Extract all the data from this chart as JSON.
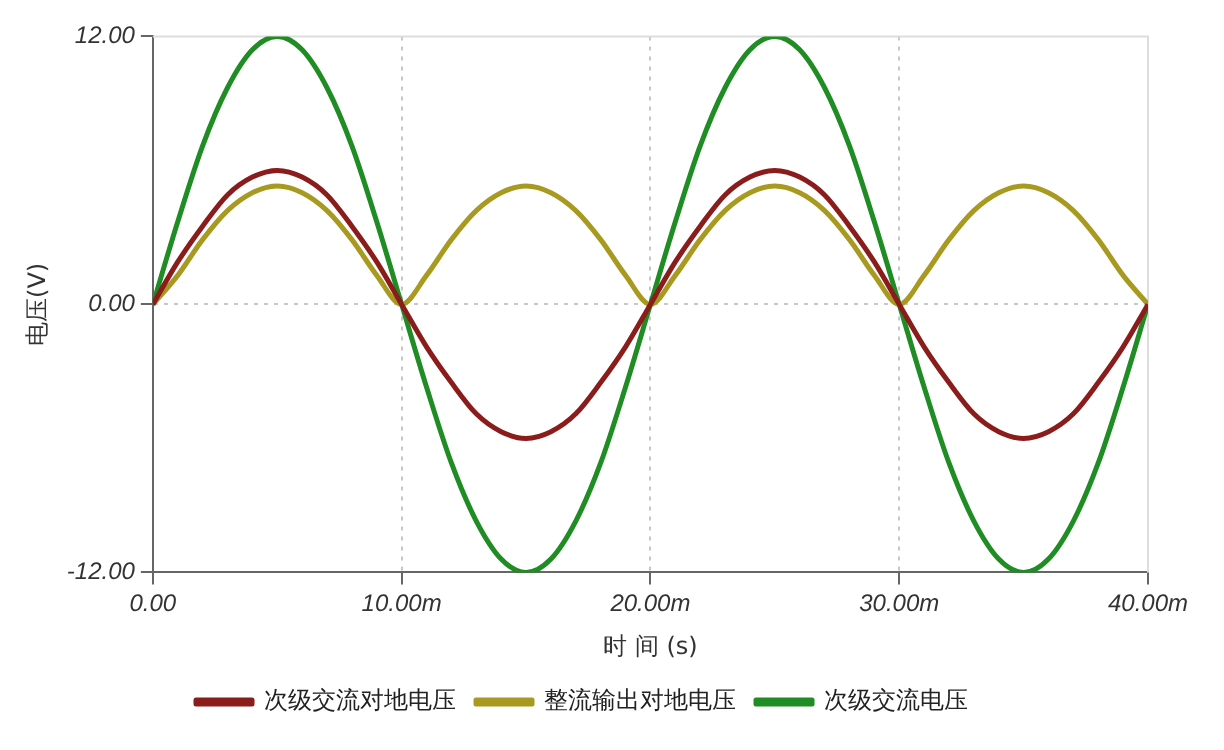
{
  "chart_data": {
    "type": "line",
    "xlabel": "时 间 (s)",
    "ylabel": "电压(V)",
    "x": [
      0,
      1,
      2,
      3,
      4,
      5,
      6,
      7,
      8,
      9,
      10,
      11,
      12,
      13,
      14,
      15,
      16,
      17,
      18,
      19,
      20,
      21,
      22,
      23,
      24,
      25,
      26,
      27,
      28,
      29,
      30,
      31,
      32,
      33,
      34,
      35,
      36,
      37,
      38,
      39,
      40
    ],
    "series": [
      {
        "name": "次级交流对地电压",
        "color": "#8b1c1c",
        "values": [
          0,
          1.9,
          3.5,
          4.9,
          5.7,
          6,
          5.7,
          4.9,
          3.5,
          1.9,
          0,
          -1.9,
          -3.5,
          -4.9,
          -5.7,
          -6,
          -5.7,
          -4.9,
          -3.5,
          -1.9,
          0,
          1.9,
          3.5,
          4.9,
          5.7,
          6,
          5.7,
          4.9,
          3.5,
          1.9,
          0,
          -1.9,
          -3.5,
          -4.9,
          -5.7,
          -6,
          -5.7,
          -4.9,
          -3.5,
          -1.9,
          0
        ]
      },
      {
        "name": "整流输出对地电压",
        "color": "#a89a20",
        "values": [
          0,
          1.3,
          2.9,
          4.2,
          5,
          5.3,
          5,
          4.2,
          2.9,
          1.3,
          0,
          1.3,
          2.9,
          4.2,
          5,
          5.3,
          5,
          4.2,
          2.9,
          1.3,
          0,
          1.3,
          2.9,
          4.2,
          5,
          5.3,
          5,
          4.2,
          2.9,
          1.3,
          0,
          1.3,
          2.9,
          4.2,
          5,
          5.3,
          5,
          4.2,
          2.9,
          1.3,
          0
        ]
      },
      {
        "name": "次级交流电压",
        "color": "#1f8c24",
        "values": [
          0,
          3.7,
          7.1,
          9.7,
          11.4,
          12,
          11.4,
          9.7,
          7.1,
          3.7,
          0,
          -3.7,
          -7.1,
          -9.7,
          -11.4,
          -12,
          -11.4,
          -9.7,
          -7.1,
          -3.7,
          0,
          3.7,
          7.1,
          9.7,
          11.4,
          12,
          11.4,
          9.7,
          7.1,
          3.7,
          0,
          -3.7,
          -7.1,
          -9.7,
          -11.4,
          -12,
          -11.4,
          -9.7,
          -7.1,
          -3.7,
          0
        ]
      }
    ],
    "xlim": [
      0,
      40
    ],
    "xticks": [
      {
        "value": 0,
        "label": "0.00"
      },
      {
        "value": 10,
        "label": "10.00m"
      },
      {
        "value": 20,
        "label": "20.00m"
      },
      {
        "value": 30,
        "label": "30.00m"
      },
      {
        "value": 40,
        "label": "40.00m"
      }
    ],
    "ylim": [
      -12,
      12
    ],
    "yticks": [
      {
        "value": -12,
        "label": "-12.00"
      },
      {
        "value": 0,
        "label": "0.00"
      },
      {
        "value": 12,
        "label": "12.00"
      }
    ],
    "grid": true,
    "legend": "bottom",
    "marker": "none",
    "line_style": "solid"
  }
}
